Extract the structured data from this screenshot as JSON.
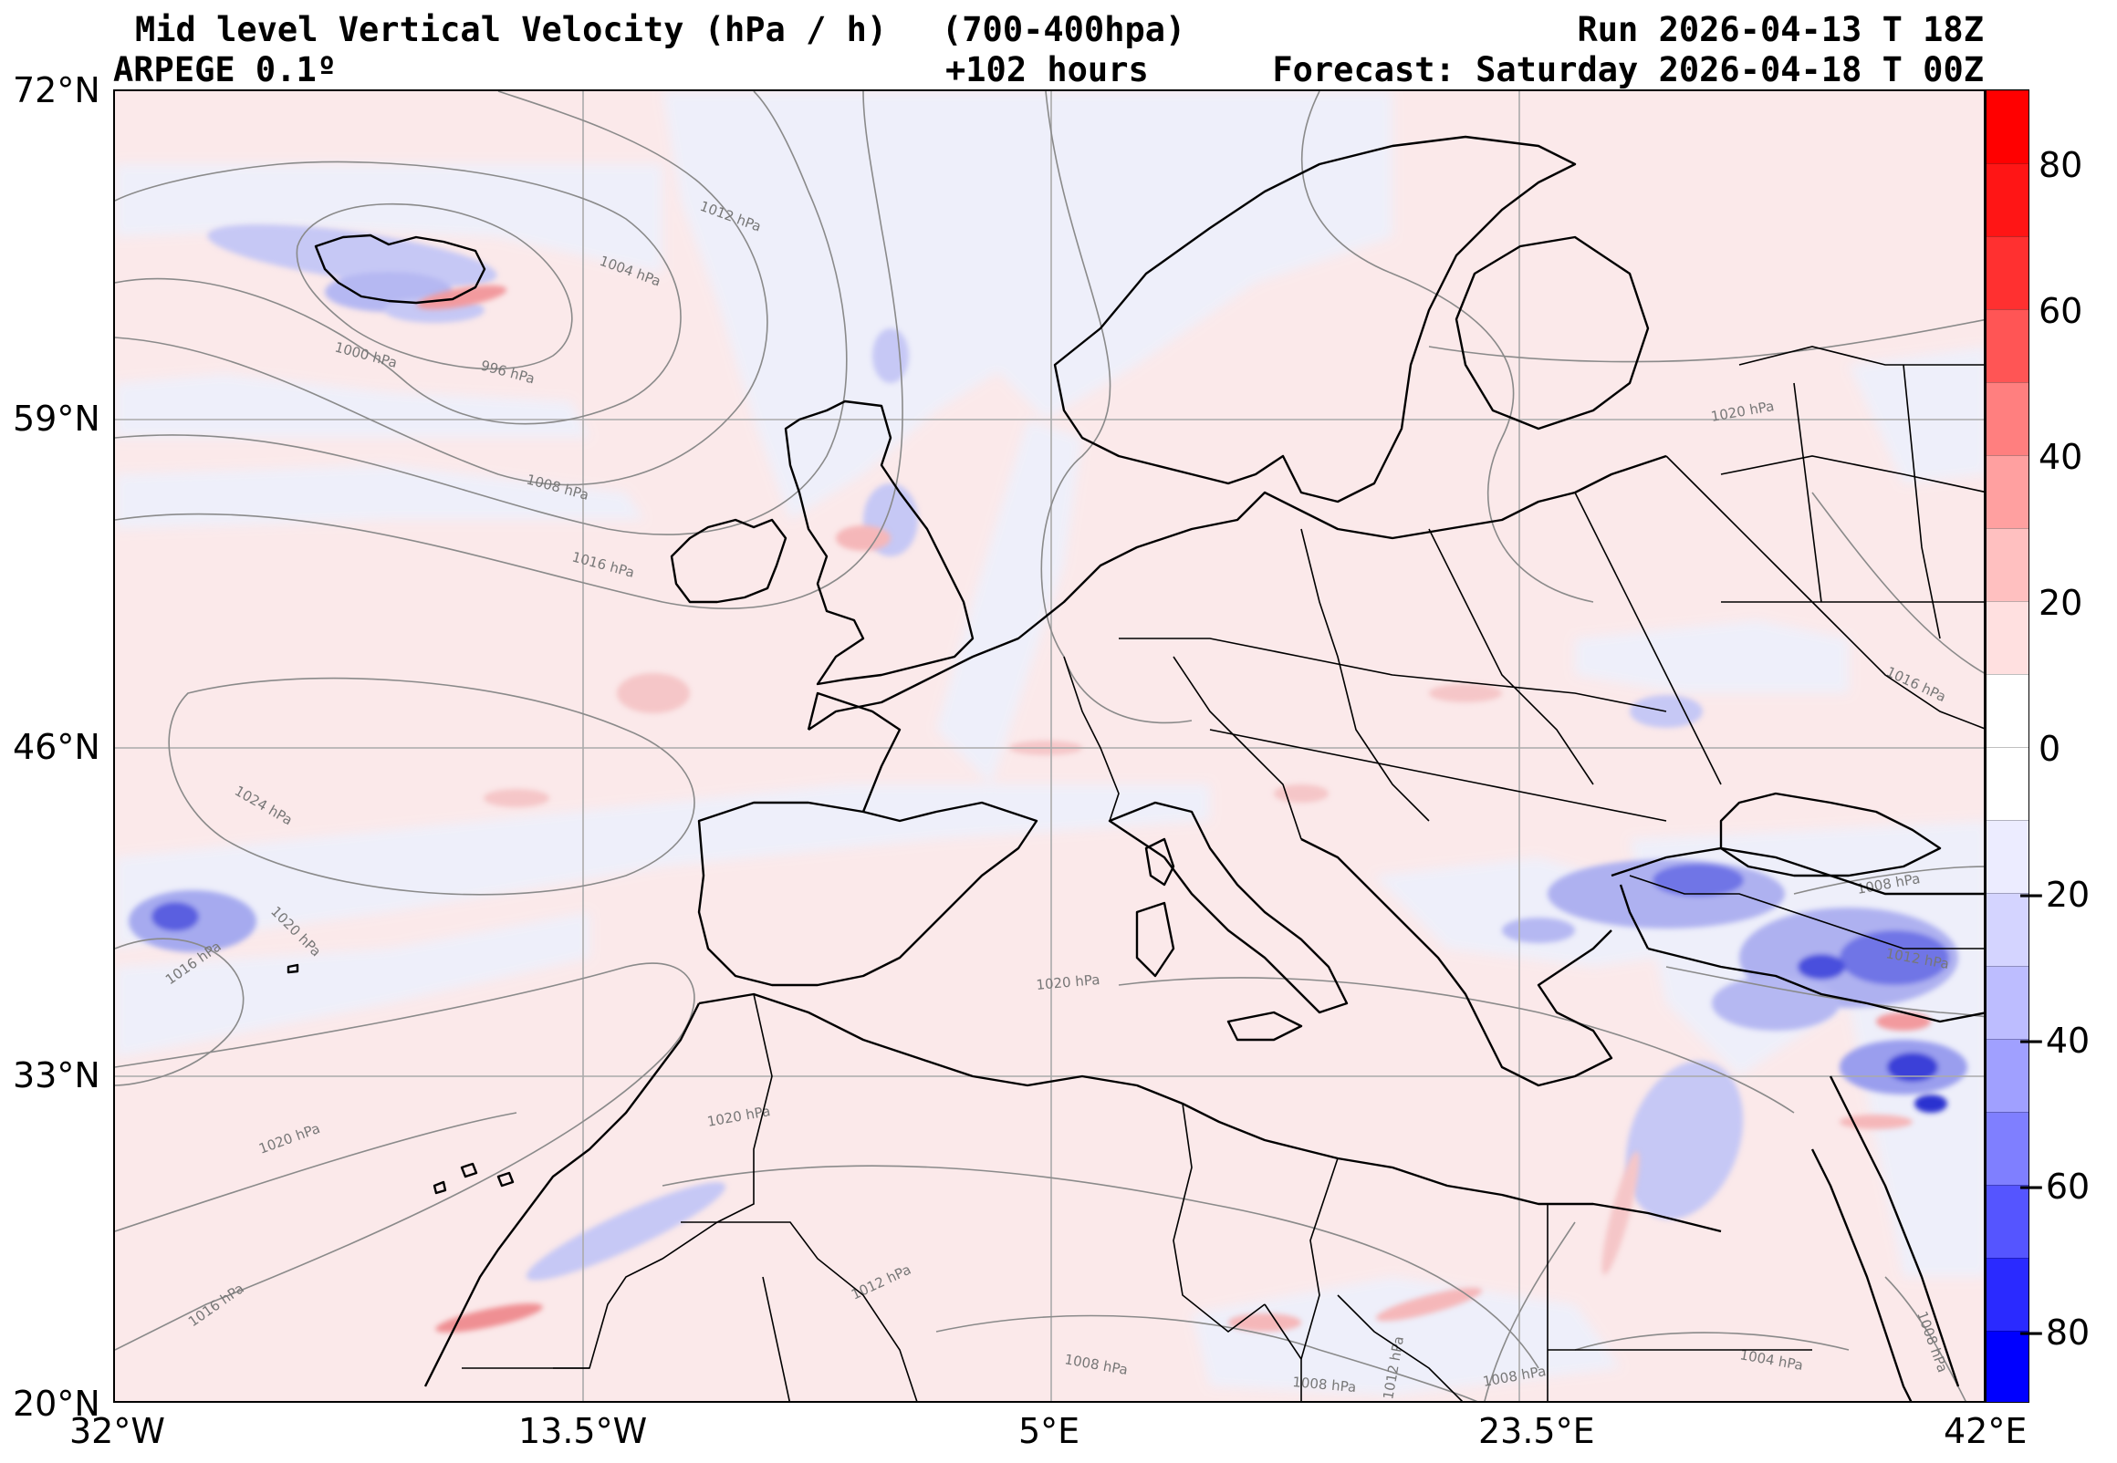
{
  "header": {
    "title": "Mid level Vertical Velocity (hPa / h)",
    "layer": "(700-400hpa)",
    "run": "Run 2026-04-13 T 18Z",
    "model": "ARPEGE 0.1º",
    "lead": "+102 hours",
    "forecast": "Forecast: Saturday 2026-04-18 T 00Z"
  },
  "map": {
    "lat_labels": [
      "72°N",
      "59°N",
      "46°N",
      "33°N",
      "20°N"
    ],
    "lon_labels": [
      "32°W",
      "13.5°W",
      "5°E",
      "23.5°E",
      "42°E"
    ],
    "lon_range": [
      -32,
      42
    ],
    "lat_range": [
      20,
      72
    ],
    "land_color": "#fdf0ef",
    "sea_color": "#eef0fb",
    "isobar_labels": [
      "1012 hPa",
      "1004 hPa",
      "1000 hPa",
      "996 hPa",
      "1008 hPa",
      "1016 hPa",
      "1024 hPa",
      "1020 hPa",
      "1016 hPa",
      "1020 hPa",
      "1020 hPa",
      "1016 hPa",
      "1012 hPa",
      "1008 hPa",
      "1008 hPa",
      "1012 hPa",
      "1008 hPa",
      "1004 hPa",
      "1008 hPa",
      "1012 hPa",
      "1016 hPa",
      "1008 hPa",
      "1020 hPa",
      "1020 hPa"
    ]
  },
  "colorbar": {
    "tick_labels": [
      "80",
      "60",
      "40",
      "20",
      "0",
      "−20",
      "−40",
      "−60",
      "−80"
    ],
    "levels": [
      -90,
      -80,
      -70,
      -60,
      -50,
      -40,
      -30,
      -20,
      -10,
      0,
      10,
      20,
      30,
      40,
      50,
      60,
      70,
      80,
      90
    ],
    "colors": [
      "#0000ff",
      "#2a2aff",
      "#5555ff",
      "#7f7fff",
      "#a0a0ff",
      "#bdbdff",
      "#d4d4ff",
      "#ececff",
      "#ffffff",
      "#ffffff",
      "#ffe0e0",
      "#ffc0c0",
      "#ffa0a0",
      "#ff7f7f",
      "#ff5555",
      "#ff3030",
      "#ff1515",
      "#ff0000"
    ]
  }
}
